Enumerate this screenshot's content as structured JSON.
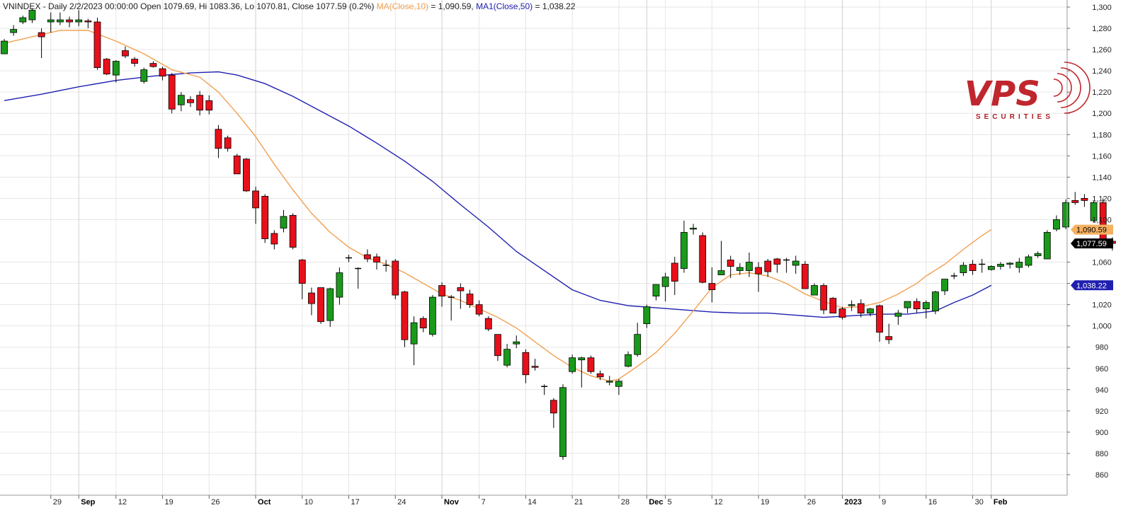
{
  "chart_data": {
    "type": "candlestick",
    "header": {
      "symbol": "VNINDEX",
      "info": " - Daily 2/2/2023 00:00:00 Open 1079.69, Hi 1083.36, Lo 1070.81, Close 1077.59 (0.2%) ",
      "ma10_label": "MA(Close,10)",
      "ma10_value": " = 1,090.59, ",
      "ma50_label": "MA1(Close,50)",
      "ma50_value": " = 1,038.22"
    },
    "colors": {
      "up": "#1a9a1a",
      "down": "#e8101a",
      "ma10": "#f0a050",
      "ma50": "#1f1fb0",
      "grid": "#e6e6e6"
    },
    "ylim": [
      850,
      1300
    ],
    "y_ticks": [
      {
        "v": 1300,
        "label": "1,300"
      },
      {
        "v": 1280,
        "label": "1,280"
      },
      {
        "v": 1260,
        "label": "1,260"
      },
      {
        "v": 1240,
        "label": "1,240"
      },
      {
        "v": 1220,
        "label": "1,220"
      },
      {
        "v": 1200,
        "label": "1,200"
      },
      {
        "v": 1180,
        "label": "1,180"
      },
      {
        "v": 1160,
        "label": "1,160"
      },
      {
        "v": 1140,
        "label": "1,140"
      },
      {
        "v": 1120,
        "label": "1,120"
      },
      {
        "v": 1100,
        "label": "1,100"
      },
      {
        "v": 1060,
        "label": "1,060"
      },
      {
        "v": 1040,
        "label": "1,040"
      },
      {
        "v": 1020,
        "label": "1,020"
      },
      {
        "v": 1000,
        "label": "1,000"
      },
      {
        "v": 980,
        "label": "980"
      },
      {
        "v": 960,
        "label": "960"
      },
      {
        "v": 940,
        "label": "940"
      },
      {
        "v": 920,
        "label": "920"
      },
      {
        "v": 900,
        "label": "900"
      },
      {
        "v": 880,
        "label": "880"
      },
      {
        "v": 860,
        "label": "860"
      }
    ],
    "x_ticks": [
      {
        "i": 5,
        "label": "29",
        "bold": false
      },
      {
        "i": 8,
        "label": "Sep",
        "bold": true
      },
      {
        "i": 12,
        "label": "12",
        "bold": false
      },
      {
        "i": 17,
        "label": "19",
        "bold": false
      },
      {
        "i": 22,
        "label": "26",
        "bold": false
      },
      {
        "i": 27,
        "label": "Oct",
        "bold": true
      },
      {
        "i": 32,
        "label": "10",
        "bold": false
      },
      {
        "i": 37,
        "label": "17",
        "bold": false
      },
      {
        "i": 42,
        "label": "24",
        "bold": false
      },
      {
        "i": 47,
        "label": "Nov",
        "bold": true
      },
      {
        "i": 51,
        "label": "7",
        "bold": false
      },
      {
        "i": 56,
        "label": "14",
        "bold": false
      },
      {
        "i": 61,
        "label": "21",
        "bold": false
      },
      {
        "i": 66,
        "label": "28",
        "bold": false
      },
      {
        "i": 69,
        "label": "Dec",
        "bold": true
      },
      {
        "i": 71,
        "label": "5",
        "bold": false
      },
      {
        "i": 76,
        "label": "12",
        "bold": false
      },
      {
        "i": 81,
        "label": "19",
        "bold": false
      },
      {
        "i": 86,
        "label": "26",
        "bold": false
      },
      {
        "i": 90,
        "label": "2023",
        "bold": true
      },
      {
        "i": 94,
        "label": "9",
        "bold": false
      },
      {
        "i": 99,
        "label": "16",
        "bold": false
      },
      {
        "i": 104,
        "label": "30",
        "bold": false
      },
      {
        "i": 106,
        "label": "Feb",
        "bold": true
      }
    ],
    "value_tags": [
      {
        "name": "ma10-tag",
        "v": 1090.59,
        "label": "1,090.59",
        "bg": "#f5b060",
        "fg": "#000000"
      },
      {
        "name": "close-tag",
        "v": 1077.59,
        "label": "1,077.59",
        "bg": "#000000",
        "fg": "#ffffff"
      },
      {
        "name": "ma50-tag",
        "v": 1038.22,
        "label": "1,038.22",
        "bg": "#1f1fb0",
        "fg": "#ffffff"
      }
    ],
    "candles": [
      [
        1256,
        1268,
        1256,
        1270
      ],
      [
        1276,
        1279,
        1273,
        1283
      ],
      [
        1286,
        1290,
        1284,
        1292
      ],
      [
        1288,
        1297,
        1285,
        1299
      ],
      [
        1276,
        1272,
        1252,
        1280
      ],
      [
        1286,
        1288,
        1276,
        1295
      ],
      [
        1286,
        1288,
        1283,
        1295
      ],
      [
        1288,
        1286,
        1281,
        1291
      ],
      [
        1286,
        1288,
        1282,
        1297
      ],
      [
        1287,
        1286,
        1280,
        1289
      ],
      [
        1286,
        1243,
        1241,
        1290
      ],
      [
        1251,
        1237,
        1236,
        1252
      ],
      [
        1236,
        1249,
        1229,
        1250
      ],
      [
        1259,
        1254,
        1252,
        1263
      ],
      [
        1251,
        1247,
        1244,
        1253
      ],
      [
        1230,
        1241,
        1228,
        1243
      ],
      [
        1247,
        1244,
        1243,
        1249
      ],
      [
        1242,
        1235,
        1231,
        1244
      ],
      [
        1236,
        1204,
        1200,
        1238
      ],
      [
        1208,
        1217,
        1202,
        1220
      ],
      [
        1213,
        1210,
        1206,
        1216
      ],
      [
        1217,
        1203,
        1198,
        1221
      ],
      [
        1212,
        1203,
        1199,
        1217
      ],
      [
        1185,
        1167,
        1158,
        1189
      ],
      [
        1177,
        1167,
        1164,
        1179
      ],
      [
        1160,
        1143,
        1143,
        1162
      ],
      [
        1157,
        1127,
        1126,
        1158
      ],
      [
        1127,
        1111,
        1096,
        1131
      ],
      [
        1122,
        1082,
        1078,
        1124
      ],
      [
        1087,
        1077,
        1072,
        1090
      ],
      [
        1092,
        1103,
        1088,
        1109
      ],
      [
        1104,
        1074,
        1072,
        1106
      ],
      [
        1062,
        1040,
        1025,
        1063
      ],
      [
        1031,
        1021,
        1010,
        1036
      ],
      [
        1036,
        1004,
        1002,
        1036
      ],
      [
        1005,
        1035,
        999,
        1036
      ],
      [
        1027,
        1050,
        1020,
        1055
      ],
      [
        1064,
        1064,
        1060,
        1067
      ],
      [
        1054,
        1054,
        1035,
        1055
      ],
      [
        1067,
        1063,
        1060,
        1072
      ],
      [
        1065,
        1060,
        1053,
        1068
      ],
      [
        1057,
        1057,
        1051,
        1062
      ],
      [
        1061,
        1029,
        1025,
        1063
      ],
      [
        1032,
        987,
        980,
        1033
      ],
      [
        983,
        1003,
        963,
        1009
      ],
      [
        1007,
        998,
        994,
        1009
      ],
      [
        992,
        1027,
        990,
        1029
      ],
      [
        1038,
        1028,
        1018,
        1041
      ],
      [
        1027,
        1027,
        1005,
        1029
      ],
      [
        1036,
        1033,
        1016,
        1040
      ],
      [
        1030,
        1020,
        1017,
        1034
      ],
      [
        1020,
        1011,
        1009,
        1024
      ],
      [
        1007,
        997,
        995,
        1009
      ],
      [
        992,
        972,
        967,
        992
      ],
      [
        963,
        978,
        961,
        983
      ],
      [
        983,
        985,
        979,
        991
      ],
      [
        975,
        954,
        946,
        978
      ],
      [
        962,
        961,
        958,
        969
      ],
      [
        943,
        943,
        935,
        945
      ],
      [
        930,
        918,
        904,
        932
      ],
      [
        877,
        942,
        874,
        945
      ],
      [
        957,
        970,
        955,
        973
      ],
      [
        968,
        970,
        942,
        971
      ],
      [
        970,
        957,
        955,
        972
      ],
      [
        955,
        952,
        949,
        958
      ],
      [
        947,
        948,
        944,
        953
      ],
      [
        943,
        948,
        935,
        950
      ],
      [
        962,
        973,
        961,
        976
      ],
      [
        973,
        992,
        971,
        1003
      ],
      [
        1002,
        1018,
        998,
        1020
      ],
      [
        1028,
        1039,
        1024,
        1039
      ],
      [
        1037,
        1046,
        1023,
        1050
      ],
      [
        1059,
        1042,
        1029,
        1065
      ],
      [
        1054,
        1088,
        1050,
        1099
      ],
      [
        1091,
        1092,
        1086,
        1096
      ],
      [
        1085,
        1041,
        1040,
        1088
      ],
      [
        1040,
        1034,
        1022,
        1055
      ],
      [
        1048,
        1052,
        1050,
        1080
      ],
      [
        1062,
        1056,
        1045,
        1066
      ],
      [
        1052,
        1055,
        1048,
        1059
      ],
      [
        1052,
        1060,
        1046,
        1069
      ],
      [
        1055,
        1049,
        1032,
        1060
      ],
      [
        1061,
        1051,
        1046,
        1063
      ],
      [
        1063,
        1058,
        1050,
        1064
      ],
      [
        1062,
        1062,
        1050,
        1064
      ],
      [
        1057,
        1061,
        1049,
        1066
      ],
      [
        1058,
        1035,
        1039,
        1061
      ],
      [
        1029,
        1038,
        1031,
        1040
      ],
      [
        1038,
        1015,
        1011,
        1040
      ],
      [
        1026,
        1012,
        1015,
        1027
      ],
      [
        1016,
        1008,
        1006,
        1018
      ],
      [
        1019,
        1020,
        1014,
        1024
      ],
      [
        1021,
        1012,
        1008,
        1025
      ],
      [
        1012,
        1016,
        1009,
        1017
      ],
      [
        1019,
        994,
        985,
        1020
      ],
      [
        990,
        987,
        983,
        1002
      ],
      [
        1009,
        1012,
        1001,
        1015
      ],
      [
        1017,
        1023,
        1012,
        1022
      ],
      [
        1023,
        1016,
        1012,
        1026
      ],
      [
        1016,
        1022,
        1007,
        1024
      ],
      [
        1014,
        1032,
        1011,
        1033
      ],
      [
        1033,
        1044,
        1029,
        1044
      ],
      [
        1047,
        1047,
        1044,
        1050
      ],
      [
        1050,
        1057,
        1047,
        1060
      ],
      [
        1058,
        1052,
        1048,
        1062
      ],
      [
        1058,
        1058,
        1050,
        1063
      ],
      [
        1053,
        1056,
        1052,
        1057
      ],
      [
        1056,
        1058,
        1053,
        1060
      ],
      [
        1058,
        1059,
        1054,
        1060
      ],
      [
        1055,
        1060,
        1050,
        1064
      ],
      [
        1057,
        1065,
        1055,
        1067
      ],
      [
        1066,
        1068,
        1064,
        1070
      ],
      [
        1063,
        1088,
        1063,
        1090
      ],
      [
        1091,
        1100,
        1089,
        1104
      ],
      [
        1093,
        1116,
        1091,
        1119
      ],
      [
        1118,
        1116,
        1114,
        1126
      ],
      [
        1120,
        1118,
        1112,
        1124
      ],
      [
        1099,
        1116,
        1098,
        1118
      ],
      [
        1116,
        1080,
        1076,
        1120
      ],
      [
        1079.69,
        1077.59,
        1070.81,
        1083.36
      ]
    ],
    "ma10": [
      [
        0,
        1266
      ],
      [
        6,
        1278
      ],
      [
        9,
        1278
      ],
      [
        12,
        1268
      ],
      [
        15,
        1256
      ],
      [
        18,
        1241
      ],
      [
        21,
        1234
      ],
      [
        23,
        1220
      ],
      [
        25,
        1200
      ],
      [
        27,
        1178
      ],
      [
        29,
        1152
      ],
      [
        31,
        1128
      ],
      [
        33,
        1106
      ],
      [
        35,
        1088
      ],
      [
        37,
        1074
      ],
      [
        39,
        1064
      ],
      [
        41,
        1058
      ],
      [
        43,
        1050
      ],
      [
        45,
        1040
      ],
      [
        47,
        1030
      ],
      [
        49,
        1024
      ],
      [
        51,
        1016
      ],
      [
        53,
        1008
      ],
      [
        55,
        998
      ],
      [
        57,
        985
      ],
      [
        59,
        972
      ],
      [
        61,
        961
      ],
      [
        63,
        953
      ],
      [
        65,
        948
      ],
      [
        66,
        950
      ],
      [
        68,
        962
      ],
      [
        70,
        975
      ],
      [
        72,
        993
      ],
      [
        74,
        1014
      ],
      [
        76,
        1036
      ],
      [
        78,
        1048
      ],
      [
        80,
        1050
      ],
      [
        82,
        1047
      ],
      [
        84,
        1040
      ],
      [
        86,
        1030
      ],
      [
        88,
        1023
      ],
      [
        90,
        1017
      ],
      [
        92,
        1018
      ],
      [
        94,
        1022
      ],
      [
        96,
        1030
      ],
      [
        98,
        1040
      ],
      [
        99,
        1047
      ],
      [
        101,
        1058
      ],
      [
        103,
        1072
      ],
      [
        105,
        1085
      ],
      [
        106,
        1090.59
      ]
    ],
    "ma50": [
      [
        0,
        1212
      ],
      [
        4,
        1218
      ],
      [
        8,
        1225
      ],
      [
        12,
        1231
      ],
      [
        16,
        1235
      ],
      [
        20,
        1238
      ],
      [
        23,
        1239
      ],
      [
        25,
        1236
      ],
      [
        28,
        1228
      ],
      [
        31,
        1216
      ],
      [
        34,
        1202
      ],
      [
        37,
        1188
      ],
      [
        40,
        1172
      ],
      [
        43,
        1155
      ],
      [
        46,
        1136
      ],
      [
        49,
        1114
      ],
      [
        52,
        1093
      ],
      [
        55,
        1070
      ],
      [
        58,
        1052
      ],
      [
        61,
        1034
      ],
      [
        64,
        1024
      ],
      [
        67,
        1019
      ],
      [
        70,
        1017
      ],
      [
        73,
        1015
      ],
      [
        76,
        1013
      ],
      [
        79,
        1012
      ],
      [
        82,
        1012
      ],
      [
        85,
        1010
      ],
      [
        88,
        1008
      ],
      [
        90,
        1009
      ],
      [
        94,
        1011
      ],
      [
        97,
        1011
      ],
      [
        100,
        1014
      ],
      [
        102,
        1022
      ],
      [
        104,
        1029
      ],
      [
        106,
        1038.22
      ]
    ]
  },
  "logo": {
    "text": "VPS",
    "subtitle": "SECURITIES"
  }
}
